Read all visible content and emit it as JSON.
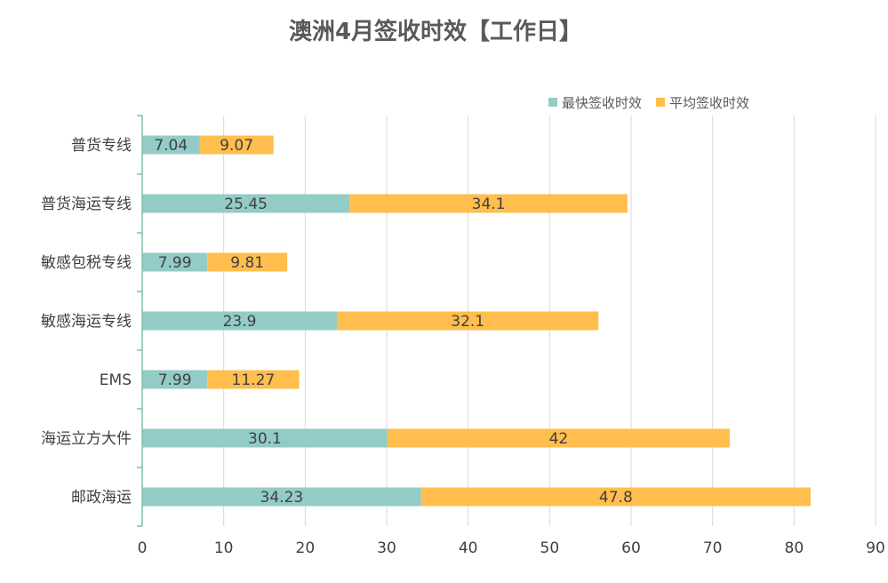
{
  "chart_data": {
    "type": "bar",
    "orientation": "horizontal",
    "stacked": true,
    "title": "澳洲4月签收时效【工作日】",
    "xlabel": "",
    "ylabel": "",
    "xlim": [
      0,
      90
    ],
    "xticks": [
      0,
      10,
      20,
      30,
      40,
      50,
      60,
      70,
      80,
      90
    ],
    "xtick_labels": [
      "0",
      "10",
      "20",
      "30",
      "40",
      "50",
      "60",
      "70",
      "80",
      "90"
    ],
    "grid": "vertical",
    "legend_position": "top-right",
    "categories": [
      "普货专线",
      "普货海运专线",
      "敏感包税专线",
      "敏感海运专线",
      "EMS",
      "海运立方大件",
      "邮政海运"
    ],
    "series": [
      {
        "name": "最快签收时效",
        "color": "#93CBC6",
        "values": [
          7.04,
          25.45,
          7.99,
          23.9,
          7.99,
          30.1,
          34.23
        ],
        "labels": [
          "7.04",
          "25.45",
          "7.99",
          "23.9",
          "7.99",
          "30.1",
          "34.23"
        ]
      },
      {
        "name": "平均签收时效",
        "color": "#FFBE4D",
        "values": [
          9.07,
          34.1,
          9.81,
          32.1,
          11.27,
          42,
          47.8
        ],
        "labels": [
          "9.07",
          "34.1",
          "9.81",
          "32.1",
          "11.27",
          "42",
          "47.8"
        ]
      }
    ]
  },
  "colors": {
    "axis": "#7DBDB6",
    "grid": "#D9D9D9"
  }
}
